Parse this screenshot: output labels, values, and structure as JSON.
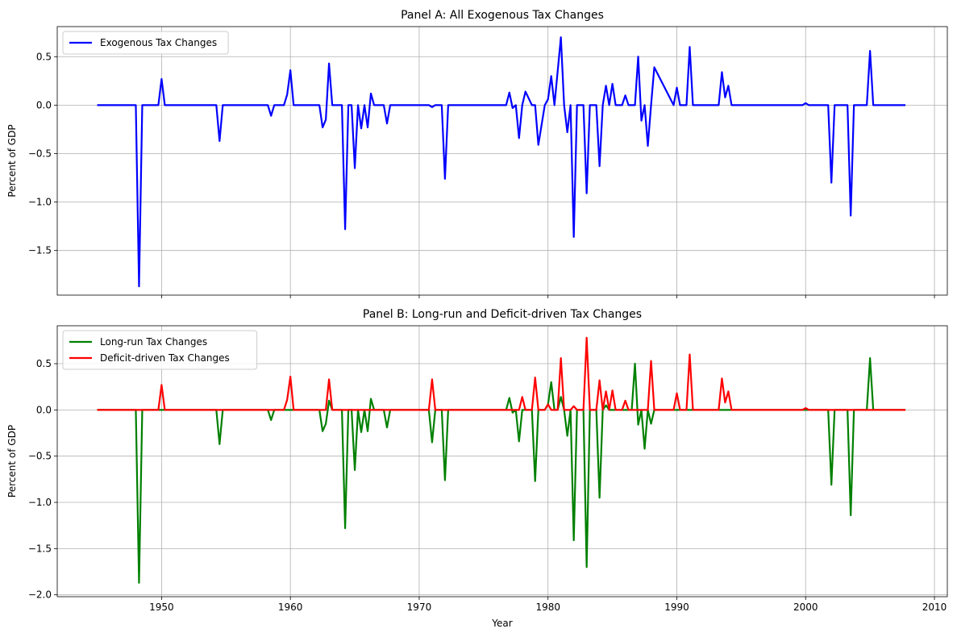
{
  "chart_data": [
    {
      "type": "line",
      "title": "Panel A: All Exogenous Tax Changes",
      "xlabel": "",
      "ylabel": "Percent of GDP",
      "xlim": [
        1941.9,
        2011.0
      ],
      "ylim": [
        -1.96,
        0.81
      ],
      "xticks": [
        1950,
        1960,
        1970,
        1980,
        1990,
        2000,
        2010
      ],
      "yticks": [
        -1.5,
        -1.0,
        -0.5,
        0.0,
        0.5
      ],
      "show_xtick_labels": false,
      "grid": true,
      "legend_position": "upper-left",
      "series": [
        {
          "name": "Exogenous Tax Changes",
          "color": "#0000ff",
          "x": [
            1945.0,
            1948.0,
            1948.25,
            1948.5,
            1949.75,
            1950.0,
            1950.25,
            1954.25,
            1954.5,
            1954.75,
            1958.25,
            1958.5,
            1958.75,
            1959.5,
            1959.75,
            1960.0,
            1960.25,
            1962.25,
            1962.5,
            1962.75,
            1963.0,
            1963.25,
            1963.75,
            1964.0,
            1964.25,
            1964.5,
            1964.75,
            1965.0,
            1965.25,
            1965.5,
            1965.75,
            1966.0,
            1966.25,
            1966.5,
            1967.25,
            1967.5,
            1967.75,
            1970.75,
            1971.0,
            1971.25,
            1971.75,
            1972.0,
            1972.25,
            1976.75,
            1977.0,
            1977.25,
            1977.5,
            1977.75,
            1978.0,
            1978.25,
            1978.75,
            1979.0,
            1979.25,
            1979.75,
            1980.0,
            1980.25,
            1980.5,
            1981.0,
            1981.25,
            1981.5,
            1981.75,
            1982.0,
            1982.25,
            1982.75,
            1983.0,
            1983.25,
            1983.75,
            1984.0,
            1984.25,
            1984.5,
            1984.75,
            1985.0,
            1985.25,
            1985.75,
            1986.0,
            1986.25,
            1986.75,
            1987.0,
            1987.25,
            1987.5,
            1987.75,
            1988.0,
            1988.25,
            1989.75,
            1990.0,
            1990.25,
            1990.75,
            1991.0,
            1991.25,
            1993.25,
            1993.5,
            1993.75,
            1994.0,
            1994.25,
            1999.75,
            2000.0,
            2000.25,
            2001.75,
            2002.0,
            2002.25,
            2003.25,
            2003.5,
            2003.75,
            2004.75,
            2005.0,
            2005.25,
            2007.75
          ],
          "y": [
            0.0,
            0.0,
            -1.87,
            0.0,
            0.0,
            0.27,
            0.0,
            0.0,
            -0.37,
            0.0,
            0.0,
            -0.11,
            0.0,
            0.0,
            0.11,
            0.36,
            0.0,
            0.0,
            -0.23,
            -0.15,
            0.43,
            0.0,
            0.0,
            0.0,
            -1.28,
            0.0,
            0.0,
            -0.65,
            0.0,
            -0.24,
            0.0,
            -0.23,
            0.12,
            0.0,
            0.0,
            -0.19,
            0.0,
            0.0,
            -0.02,
            0.0,
            0.0,
            -0.76,
            0.0,
            0.0,
            0.13,
            -0.03,
            0.0,
            -0.34,
            0.0,
            0.14,
            0.0,
            0.0,
            -0.41,
            0.0,
            0.06,
            0.3,
            0.0,
            0.7,
            0.0,
            -0.28,
            0.0,
            -1.36,
            0.0,
            0.0,
            -0.91,
            0.0,
            0.0,
            -0.63,
            0.0,
            0.2,
            0.0,
            0.22,
            0.0,
            0.0,
            0.1,
            0.0,
            0.0,
            0.5,
            -0.16,
            0.0,
            -0.42,
            0.0,
            0.39,
            0.0,
            0.18,
            0.0,
            0.0,
            0.6,
            0.0,
            0.0,
            0.34,
            0.08,
            0.2,
            0.0,
            0.0,
            0.02,
            0.0,
            0.0,
            -0.8,
            0.0,
            0.0,
            -1.14,
            0.0,
            0.0,
            0.56,
            0.0,
            0.0
          ]
        }
      ]
    },
    {
      "type": "line",
      "title": "Panel B: Long-run and Deficit-driven Tax Changes",
      "xlabel": "Year",
      "ylabel": "Percent of GDP",
      "xlim": [
        1941.9,
        2011.0
      ],
      "ylim": [
        -2.02,
        0.91
      ],
      "xticks": [
        1950,
        1960,
        1970,
        1980,
        1990,
        2000,
        2010
      ],
      "yticks": [
        -2.0,
        -1.5,
        -1.0,
        -0.5,
        0.0,
        0.5
      ],
      "show_xtick_labels": true,
      "grid": true,
      "legend_position": "upper-left",
      "series": [
        {
          "name": "Long-run Tax Changes",
          "color": "#008000",
          "x": [
            1945.0,
            1948.0,
            1948.25,
            1948.5,
            1954.25,
            1954.5,
            1954.75,
            1958.25,
            1958.5,
            1958.75,
            1962.25,
            1962.5,
            1962.75,
            1963.0,
            1963.25,
            1963.75,
            1964.0,
            1964.25,
            1964.5,
            1964.75,
            1965.0,
            1965.25,
            1965.5,
            1965.75,
            1966.0,
            1966.25,
            1966.5,
            1967.25,
            1967.5,
            1967.75,
            1970.75,
            1971.0,
            1971.25,
            1971.75,
            1972.0,
            1972.25,
            1976.75,
            1977.0,
            1977.25,
            1977.5,
            1977.75,
            1978.0,
            1978.25,
            1978.75,
            1979.0,
            1979.25,
            1979.75,
            1980.0,
            1980.25,
            1980.5,
            1980.75,
            1981.0,
            1981.25,
            1981.5,
            1981.75,
            1982.0,
            1982.25,
            1982.75,
            1983.0,
            1983.25,
            1983.75,
            1984.0,
            1984.25,
            1984.5,
            1984.75,
            1986.5,
            1986.75,
            1987.0,
            1987.25,
            1987.5,
            1987.75,
            1988.0,
            1988.25,
            1988.5,
            2001.75,
            2002.0,
            2002.25,
            2003.25,
            2003.5,
            2003.75,
            2004.75,
            2005.0,
            2005.25,
            2007.75
          ],
          "y": [
            0.0,
            0.0,
            -1.87,
            0.0,
            0.0,
            -0.37,
            0.0,
            0.0,
            -0.11,
            0.0,
            0.0,
            -0.23,
            -0.15,
            0.1,
            0.0,
            0.0,
            0.0,
            -1.28,
            0.0,
            0.0,
            -0.65,
            0.0,
            -0.24,
            0.0,
            -0.23,
            0.12,
            0.0,
            0.0,
            -0.19,
            0.0,
            0.0,
            -0.35,
            0.0,
            0.0,
            -0.76,
            0.0,
            0.0,
            0.13,
            -0.03,
            0.0,
            -0.34,
            0.0,
            0.0,
            0.0,
            -0.77,
            0.0,
            0.0,
            0.06,
            0.3,
            0.0,
            0.0,
            0.14,
            0.0,
            -0.28,
            0.0,
            -1.41,
            0.0,
            0.0,
            -1.7,
            0.0,
            0.0,
            -0.95,
            0.0,
            0.05,
            0.0,
            0.0,
            0.5,
            -0.16,
            0.0,
            -0.42,
            0.0,
            -0.15,
            0.0,
            0.0,
            0.0,
            -0.81,
            0.0,
            0.0,
            -1.14,
            0.0,
            0.0,
            0.56,
            0.0,
            0.0
          ]
        },
        {
          "name": "Deficit-driven Tax Changes",
          "color": "#ff0000",
          "x": [
            1945.0,
            1949.75,
            1950.0,
            1950.25,
            1959.5,
            1959.75,
            1960.0,
            1960.25,
            1962.75,
            1963.0,
            1963.25,
            1970.75,
            1971.0,
            1971.25,
            1977.5,
            1977.75,
            1978.0,
            1978.25,
            1978.75,
            1979.0,
            1979.25,
            1979.75,
            1980.0,
            1980.25,
            1980.75,
            1981.0,
            1981.25,
            1981.75,
            1982.0,
            1982.25,
            1982.75,
            1983.0,
            1983.25,
            1983.75,
            1984.0,
            1984.25,
            1984.5,
            1984.75,
            1985.0,
            1985.25,
            1985.75,
            1986.0,
            1986.25,
            1987.75,
            1988.0,
            1988.25,
            1989.75,
            1990.0,
            1990.25,
            1990.75,
            1991.0,
            1991.25,
            1993.25,
            1993.5,
            1993.75,
            1994.0,
            1994.25,
            1999.75,
            2000.0,
            2000.25,
            2007.75
          ],
          "y": [
            0.0,
            0.0,
            0.27,
            0.0,
            0.0,
            0.11,
            0.36,
            0.0,
            0.0,
            0.33,
            0.0,
            0.0,
            0.33,
            0.0,
            0.0,
            0.0,
            0.14,
            0.0,
            0.0,
            0.35,
            0.0,
            0.0,
            0.06,
            0.0,
            0.0,
            0.56,
            0.0,
            0.0,
            0.04,
            0.0,
            0.0,
            0.78,
            0.0,
            0.0,
            0.32,
            0.0,
            0.2,
            0.0,
            0.21,
            0.0,
            0.0,
            0.1,
            0.0,
            0.0,
            0.53,
            0.0,
            0.0,
            0.18,
            0.0,
            0.0,
            0.6,
            0.0,
            0.0,
            0.34,
            0.08,
            0.2,
            0.0,
            0.0,
            0.02,
            0.0,
            0.0
          ]
        }
      ]
    }
  ]
}
